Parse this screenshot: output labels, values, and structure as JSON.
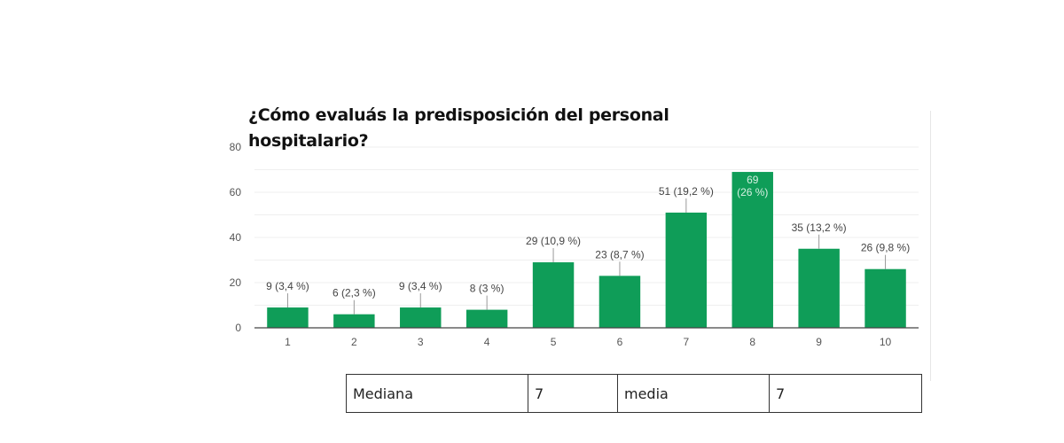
{
  "chart_data": {
    "type": "bar",
    "title": "¿Cómo evaluás la predisposición del personal hospitalario?",
    "title_lines": [
      "¿Cómo evaluás la predisposición del personal",
      "hospitalario?"
    ],
    "categories": [
      "1",
      "2",
      "3",
      "4",
      "5",
      "6",
      "7",
      "8",
      "9",
      "10"
    ],
    "values": [
      9,
      6,
      9,
      8,
      29,
      23,
      51,
      69,
      35,
      26
    ],
    "data_labels": [
      "9 (3,4 %)",
      "6 (2,3 %)",
      "9 (3,4 %)",
      "8 (3 %)",
      "29 (10,9 %)",
      "23 (8,7 %)",
      "51 (19,2 %)",
      "69 (26 %)",
      "35 (13,2 %)",
      "26 (9,8 %)"
    ],
    "percentages": [
      3.4,
      2.3,
      3.4,
      3.0,
      10.9,
      8.7,
      19.2,
      26.0,
      13.2,
      9.8
    ],
    "ylim": [
      0,
      80
    ],
    "yticks": [
      0,
      20,
      40,
      60,
      80
    ],
    "xlabel": "",
    "ylabel": "",
    "grid": true,
    "legend": "none",
    "bar_color": "#0f9d58",
    "label_color": "#444444",
    "inside_label_color": "#d6f0e2"
  },
  "stats": {
    "median_label": "Mediana",
    "median_value": "7",
    "mean_label": "media",
    "mean_value": "7"
  }
}
